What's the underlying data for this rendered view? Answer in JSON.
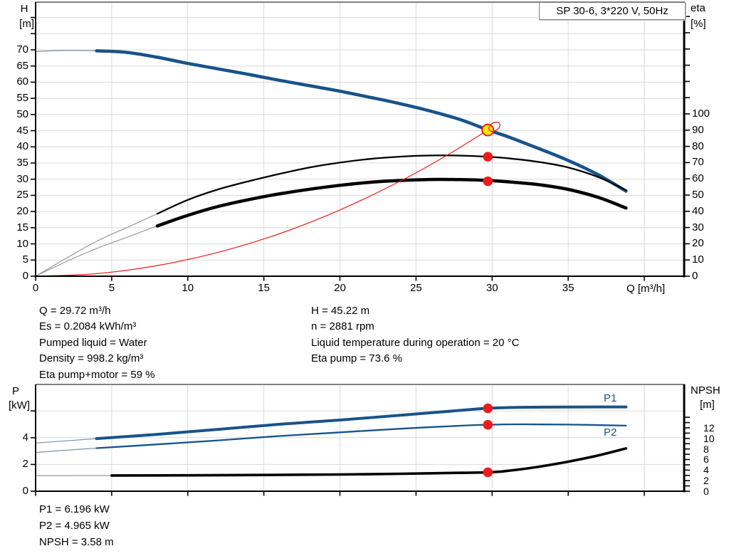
{
  "title_box": "SP 30-6, 3*220 V, 50Hz",
  "info_left": {
    "q": "Q = 29.72 m³/h",
    "es": "Es = 0.2084 kWh/m³",
    "liquid": "Pumped liquid = Water",
    "density": "Density = 998.2 kg/m³",
    "eta_total": "Eta pump+motor = 59 %"
  },
  "info_right": {
    "h": "H = 45.22 m",
    "n": "n = 2881 rpm",
    "temp": "Liquid temperature during operation = 20 °C",
    "eta_pump": "Eta pump = 73.6 %"
  },
  "info_bottom": {
    "p1": "P1 = 6.196 kW",
    "p2": "P2 = 4.965 kW",
    "npsh": "NPSH = 3.58 m"
  },
  "colors": {
    "curve_blue": "#17538a",
    "curve_black": "#000000",
    "red": "#ee1c1c",
    "yellow": "#ffe800",
    "grid": "#d9d9d9",
    "thin_blue_lead": "#7a90a8",
    "thin_gray_lead": "#999999",
    "axis": "#000000"
  },
  "chart_data": [
    {
      "type": "line",
      "name": "qh-efficiency-chart",
      "title": "SP 30-6, 3*220 V, 50Hz",
      "x_axis": {
        "label": "Q [m³/h]",
        "ticks": [
          0,
          5,
          10,
          15,
          20,
          25,
          30,
          35
        ],
        "unlabeled_ticks": [
          40
        ]
      },
      "left_axis": {
        "label": "H",
        "unit": "[m]",
        "ticks": [
          0,
          5,
          10,
          15,
          20,
          25,
          30,
          35,
          40,
          45,
          50,
          55,
          60,
          65,
          70
        ],
        "unlabeled_ticks": [
          75,
          80
        ],
        "range": [
          0,
          85
        ]
      },
      "right_axis": {
        "label": "eta",
        "unit": "[%]",
        "ticks": [
          0,
          10,
          20,
          30,
          40,
          50,
          60,
          70,
          80,
          90,
          100
        ],
        "unlabeled_ticks": [
          110,
          120,
          130,
          140,
          150,
          160
        ],
        "range": [
          0,
          169
        ]
      },
      "series": [
        {
          "name": "head-curve",
          "axis": "H",
          "thick_from": 2.6,
          "points": [
            [
              0,
              69.5
            ],
            [
              2,
              69.8
            ],
            [
              4,
              69.7
            ],
            [
              6,
              69.2
            ],
            [
              8,
              67.7
            ],
            [
              10,
              65.8
            ],
            [
              12,
              64.1
            ],
            [
              14,
              62.4
            ],
            [
              16,
              60.6
            ],
            [
              18,
              58.9
            ],
            [
              20,
              57.2
            ],
            [
              22,
              55.3
            ],
            [
              24,
              53.3
            ],
            [
              26,
              51.0
            ],
            [
              28,
              48.3
            ],
            [
              29.72,
              45.22
            ],
            [
              31,
              43.2
            ],
            [
              33,
              39.6
            ],
            [
              35,
              35.8
            ],
            [
              37,
              31.3
            ],
            [
              38.8,
              26.3
            ]
          ]
        },
        {
          "name": "eta-pump-curve",
          "axis": "eta",
          "thick_from": 7.5,
          "points": [
            [
              0,
              0
            ],
            [
              2,
              11
            ],
            [
              4,
              21.5
            ],
            [
              6,
              30
            ],
            [
              8,
              38.5
            ],
            [
              10,
              47
            ],
            [
              12,
              53.5
            ],
            [
              14,
              58.5
            ],
            [
              16,
              63
            ],
            [
              18,
              67
            ],
            [
              20,
              70
            ],
            [
              22,
              72.3
            ],
            [
              24,
              73.7
            ],
            [
              26,
              74.4
            ],
            [
              28,
              74.3
            ],
            [
              29.72,
              73.6
            ],
            [
              31,
              72.7
            ],
            [
              33,
              70.5
            ],
            [
              35,
              67
            ],
            [
              37,
              61
            ],
            [
              38.8,
              53
            ]
          ]
        },
        {
          "name": "eta-pump-motor-curve",
          "axis": "eta",
          "thick_from": 7.5,
          "points": [
            [
              0,
              0
            ],
            [
              2,
              9
            ],
            [
              4,
              17
            ],
            [
              6,
              24
            ],
            [
              8,
              31
            ],
            [
              10,
              37.5
            ],
            [
              12,
              43
            ],
            [
              14,
              47.2
            ],
            [
              16,
              50.7
            ],
            [
              18,
              53.6
            ],
            [
              20,
              56
            ],
            [
              22,
              57.9
            ],
            [
              24,
              59
            ],
            [
              26,
              59.6
            ],
            [
              28,
              59.5
            ],
            [
              29.72,
              59
            ],
            [
              31,
              58.2
            ],
            [
              33,
              56.5
            ],
            [
              35,
              53.5
            ],
            [
              37,
              48.5
            ],
            [
              38.8,
              42
            ]
          ]
        },
        {
          "name": "duty-parabola",
          "axis": "H",
          "thick_from": null,
          "points": [
            [
              0,
              0
            ],
            [
              4,
              0.8
            ],
            [
              8,
              3.3
            ],
            [
              12,
              7.4
            ],
            [
              16,
              13.1
            ],
            [
              20,
              20.5
            ],
            [
              24,
              29.5
            ],
            [
              27,
              37.3
            ],
            [
              29.72,
              45.22
            ]
          ]
        }
      ],
      "markers": [
        {
          "name": "duty-point",
          "axis": "H",
          "q": 29.72,
          "v": 45.22,
          "style": "yellow-dot"
        },
        {
          "name": "requested-duty-ring",
          "axis": "H",
          "q": 30.15,
          "v": 46.2,
          "style": "red-ring"
        },
        {
          "name": "eta-pump-duty-dot",
          "axis": "eta",
          "q": 29.72,
          "v": 73.6,
          "style": "red-dot"
        },
        {
          "name": "eta-pump-motor-duty-dot",
          "axis": "eta",
          "q": 29.72,
          "v": 58.5,
          "style": "red-dot"
        }
      ]
    },
    {
      "type": "line",
      "name": "power-npsh-chart",
      "x_axis": {
        "label": "",
        "ticks": [],
        "unlabeled_ticks": [
          0,
          5,
          10,
          15,
          20,
          25,
          30,
          35,
          40
        ]
      },
      "left_axis": {
        "label": "P",
        "unit": "[kW]",
        "ticks": [
          0,
          2,
          4
        ],
        "unlabeled_ticks": [
          6
        ],
        "range": [
          0,
          8
        ]
      },
      "right_axis": {
        "label": "NPSH",
        "unit": "[m]",
        "ticks": [
          0,
          2,
          4,
          6,
          8,
          10,
          12
        ],
        "unlabeled_ticks": [
          1,
          3,
          5,
          7,
          9,
          11,
          13,
          14
        ],
        "range": [
          0,
          20
        ]
      },
      "series": [
        {
          "name": "p1-curve",
          "axis": "P",
          "label": "P1",
          "thick_from": 3.1,
          "points": [
            [
              0,
              3.6
            ],
            [
              4,
              3.93
            ],
            [
              8,
              4.25
            ],
            [
              12,
              4.62
            ],
            [
              16,
              5.0
            ],
            [
              20,
              5.32
            ],
            [
              24,
              5.68
            ],
            [
              28,
              6.05
            ],
            [
              29.72,
              6.196
            ],
            [
              32,
              6.27
            ],
            [
              35,
              6.29
            ],
            [
              38.8,
              6.3
            ]
          ]
        },
        {
          "name": "p2-curve",
          "axis": "P",
          "label": "P2",
          "thick_from": 3.1,
          "points": [
            [
              0,
              2.9
            ],
            [
              4,
              3.22
            ],
            [
              8,
              3.5
            ],
            [
              12,
              3.8
            ],
            [
              16,
              4.12
            ],
            [
              20,
              4.4
            ],
            [
              24,
              4.67
            ],
            [
              28,
              4.9
            ],
            [
              29.72,
              4.965
            ],
            [
              32,
              5.0
            ],
            [
              35,
              4.98
            ],
            [
              38.8,
              4.9
            ]
          ]
        },
        {
          "name": "npsh-curve",
          "axis": "NPSH",
          "thick_from": 2.8,
          "points": [
            [
              0,
              2.95
            ],
            [
              5,
              2.97
            ],
            [
              10,
              3.0
            ],
            [
              15,
              3.08
            ],
            [
              20,
              3.17
            ],
            [
              24,
              3.3
            ],
            [
              27,
              3.45
            ],
            [
              29.72,
              3.58
            ],
            [
              31,
              3.85
            ],
            [
              33,
              4.6
            ],
            [
              35,
              5.6
            ],
            [
              37,
              6.8
            ],
            [
              38.8,
              8.1
            ]
          ]
        }
      ],
      "markers": [
        {
          "name": "p1-duty-dot",
          "axis": "P",
          "q": 29.72,
          "v": 6.196,
          "style": "red-dot"
        },
        {
          "name": "p2-duty-dot",
          "axis": "P",
          "q": 29.72,
          "v": 4.965,
          "style": "red-dot"
        },
        {
          "name": "npsh-duty-dot",
          "axis": "NPSH",
          "q": 29.72,
          "v": 3.58,
          "style": "red-dot"
        }
      ]
    }
  ]
}
